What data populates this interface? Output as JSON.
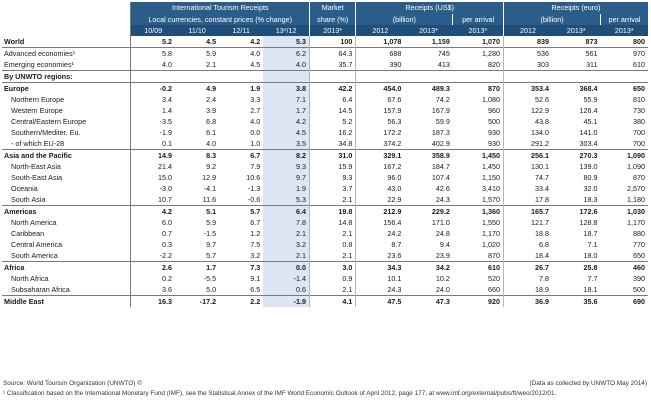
{
  "header": {
    "itr_title": "International Tourism Receipts",
    "lc_title": "Local currencies, constant prices (% change)",
    "share_title": "Market",
    "share_sub": "share (%)",
    "usd_title": "Receipts (US$)",
    "usd_billion": "(billion)",
    "usd_per": "per arrival",
    "eur_title": "Receipts (euro)",
    "eur_billion": "(billion)",
    "eur_per": "per arrival",
    "periods": [
      "10/09",
      "11/10",
      "12/11",
      "13*/12",
      "2013*",
      "2012",
      "2013*",
      "2013*",
      "2012",
      "2013*",
      "2013*"
    ]
  },
  "rows": [
    {
      "label": "World",
      "v": [
        "5.2",
        "4.5",
        "4.2",
        "5.3",
        "100",
        "1,078",
        "1,159",
        "1,070",
        "839",
        "873",
        "800"
      ]
    },
    {
      "label": "Advanced economies¹",
      "v": [
        "5.8",
        "5.9",
        "4.0",
        "6.2",
        "64.3",
        "688",
        "745",
        "1,280",
        "536",
        "561",
        "970"
      ]
    },
    {
      "label": "Emerging economies¹",
      "v": [
        "4.0",
        "2.1",
        "4.5",
        "4.0",
        "35.7",
        "390",
        "413",
        "820",
        "303",
        "311",
        "610"
      ]
    },
    {
      "label": "By UNWTO regions:",
      "v": [
        "",
        "",
        "",
        "",
        "",
        "",
        "",
        "",
        "",
        "",
        ""
      ]
    },
    {
      "label": "Europe",
      "v": [
        "-0.2",
        "4.9",
        "1.9",
        "3.8",
        "42.2",
        "454.0",
        "489.3",
        "870",
        "353.4",
        "368.4",
        "650"
      ]
    },
    {
      "label": "Northern Europe",
      "v": [
        "3.4",
        "2.4",
        "3.3",
        "7.1",
        "6.4",
        "67.6",
        "74.2",
        "1,080",
        "52.6",
        "55.9",
        "810"
      ]
    },
    {
      "label": "Western Europe",
      "v": [
        "1.4",
        "3.9",
        "2.7",
        "1.7",
        "14.5",
        "157.9",
        "167.9",
        "960",
        "122.9",
        "126.4",
        "730"
      ]
    },
    {
      "label": "Central/Eastern Europe",
      "v": [
        "-3.5",
        "6.8",
        "4.0",
        "4.2",
        "5.2",
        "56.3",
        "59.9",
        "500",
        "43.8",
        "45.1",
        "380"
      ]
    },
    {
      "label": "Southern/Mediter. Eu.",
      "v": [
        "-1.9",
        "6.1",
        "0.0",
        "4.5",
        "16.2",
        "172.2",
        "187.3",
        "930",
        "134.0",
        "141.0",
        "700"
      ]
    },
    {
      "label": "- of which EU-28",
      "v": [
        "0.1",
        "4.0",
        "1.0",
        "3.5",
        "34.8",
        "374.2",
        "402.9",
        "930",
        "291.2",
        "303.4",
        "700"
      ]
    },
    {
      "label": "Asia and the Pacific",
      "v": [
        "14.9",
        "8.3",
        "6.7",
        "8.2",
        "31.0",
        "329.1",
        "358.9",
        "1,450",
        "256.1",
        "270.3",
        "1,090"
      ]
    },
    {
      "label": "North-East Asia",
      "v": [
        "21.4",
        "9.2",
        "7.9",
        "9.3",
        "15.9",
        "167.2",
        "184.7",
        "1,450",
        "130.1",
        "139.0",
        "1,090"
      ]
    },
    {
      "label": "South-East Asia",
      "v": [
        "15.0",
        "12.9",
        "10.6",
        "9.7",
        "9.3",
        "96.0",
        "107.4",
        "1,150",
        "74.7",
        "80.9",
        "870"
      ]
    },
    {
      "label": "Oceania",
      "v": [
        "-3.0",
        "-4.1",
        "-1.3",
        "1.9",
        "3.7",
        "43.0",
        "42.6",
        "3,410",
        "33.4",
        "32.0",
        "2,570"
      ]
    },
    {
      "label": "South Asia",
      "v": [
        "10.7",
        "11.6",
        "-0.6",
        "5.3",
        "2.1",
        "22.9",
        "24.3",
        "1,570",
        "17.8",
        "18.3",
        "1,180"
      ]
    },
    {
      "label": "Americas",
      "v": [
        "4.2",
        "5.1",
        "5.7",
        "6.4",
        "19.8",
        "212.9",
        "229.2",
        "1,360",
        "165.7",
        "172.6",
        "1,030"
      ]
    },
    {
      "label": "North America",
      "v": [
        "6.0",
        "5.9",
        "6.7",
        "7.8",
        "14.8",
        "156.4",
        "171.0",
        "1,550",
        "121.7",
        "128.8",
        "1,170"
      ]
    },
    {
      "label": "Caribbean",
      "v": [
        "0.7",
        "-1.5",
        "1.2",
        "2.1",
        "2.1",
        "24.2",
        "24.8",
        "1,170",
        "18.8",
        "18.7",
        "880"
      ]
    },
    {
      "label": "Central America",
      "v": [
        "0.3",
        "9.7",
        "7.5",
        "3.2",
        "0.8",
        "8.7",
        "9.4",
        "1,020",
        "6.8",
        "7.1",
        "770"
      ]
    },
    {
      "label": "South America",
      "v": [
        "-2.2",
        "5.7",
        "3.2",
        "2.1",
        "2.1",
        "23.6",
        "23.9",
        "870",
        "18.4",
        "18.0",
        "650"
      ]
    },
    {
      "label": "Africa",
      "v": [
        "2.6",
        "1.7",
        "7.3",
        "0.0",
        "3.0",
        "34.3",
        "34.2",
        "610",
        "26.7",
        "25.8",
        "460"
      ]
    },
    {
      "label": "North Africa",
      "v": [
        "0.2",
        "-5.5",
        "9.1",
        "-1.4",
        "0.9",
        "10.1",
        "10.2",
        "520",
        "7.8",
        "7.7",
        "390"
      ]
    },
    {
      "label": "Subsaharan Africa",
      "v": [
        "3.6",
        "5.0",
        "6.5",
        "0.6",
        "2.1",
        "24.3",
        "24.0",
        "660",
        "18.9",
        "18.1",
        "500"
      ]
    },
    {
      "label": "Middle East",
      "v": [
        "16.3",
        "-17.2",
        "2.2",
        "-1.9",
        "4.1",
        "47.5",
        "47.3",
        "920",
        "36.9",
        "35.6",
        "690"
      ]
    }
  ],
  "footer": {
    "source": "Source: World Tourism Organization (UNWTO) ©",
    "collected": "(Data as collected by UNWTO May 2014)",
    "note": "¹ Classification based on the International Monetary Fund (IMF), see the Statistical Annex of the IMF World Economic Outlook of April 2012, page 177, at www.imf.org/external/pubs/ft/weo/2012/01."
  }
}
